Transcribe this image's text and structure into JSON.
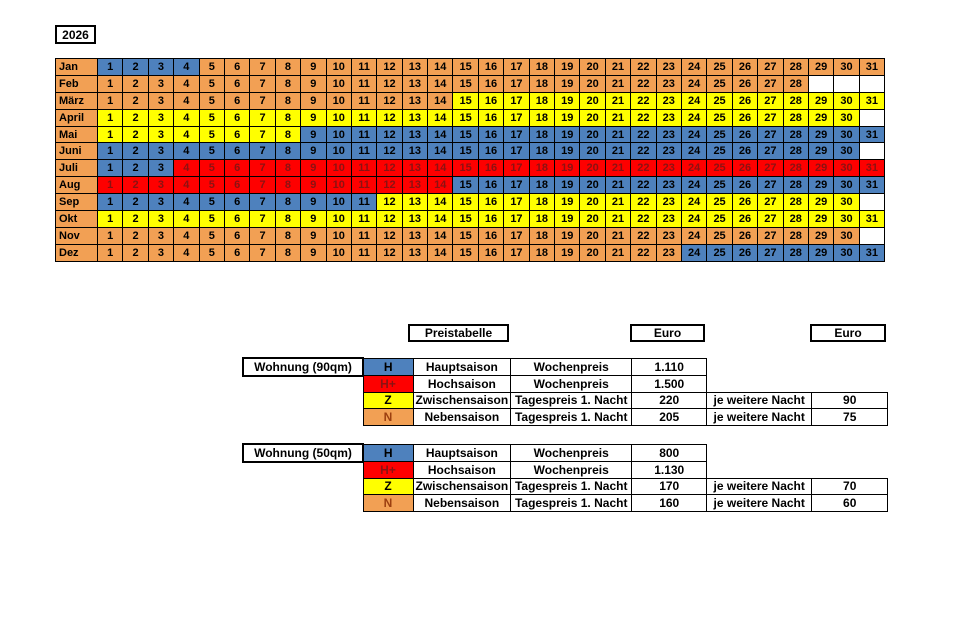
{
  "year_label": "2026",
  "season_colors": {
    "H": "#4E81BD",
    "H+": "#FE0000",
    "Z": "#FFFF00",
    "N": "#F2A054"
  },
  "season_text_colors": {
    "H": "#000000",
    "H+": "#8B1212",
    "Z": "#000000",
    "N": "#000000"
  },
  "legend_text_colors": {
    "H": "#000000",
    "H+": "#8B1212",
    "Z": "#000000",
    "N": "#9C3F10"
  },
  "calendar": {
    "months": [
      {
        "label": "Jan",
        "seasons": [
          {
            "from": 1,
            "to": 4,
            "code": "H"
          },
          {
            "from": 5,
            "to": 31,
            "code": "N"
          }
        ]
      },
      {
        "label": "Feb",
        "seasons": [
          {
            "from": 1,
            "to": 28,
            "code": "N"
          }
        ]
      },
      {
        "label": "März",
        "seasons": [
          {
            "from": 1,
            "to": 14,
            "code": "N"
          },
          {
            "from": 15,
            "to": 31,
            "code": "Z"
          }
        ]
      },
      {
        "label": "April",
        "seasons": [
          {
            "from": 1,
            "to": 30,
            "code": "Z"
          }
        ]
      },
      {
        "label": "Mai",
        "seasons": [
          {
            "from": 1,
            "to": 8,
            "code": "Z"
          },
          {
            "from": 9,
            "to": 31,
            "code": "H"
          }
        ]
      },
      {
        "label": "Juni",
        "seasons": [
          {
            "from": 1,
            "to": 30,
            "code": "H"
          }
        ]
      },
      {
        "label": "Juli",
        "seasons": [
          {
            "from": 1,
            "to": 3,
            "code": "H"
          },
          {
            "from": 4,
            "to": 31,
            "code": "H+"
          }
        ]
      },
      {
        "label": "Aug",
        "seasons": [
          {
            "from": 1,
            "to": 14,
            "code": "H+"
          },
          {
            "from": 15,
            "to": 31,
            "code": "H"
          }
        ]
      },
      {
        "label": "Sep",
        "seasons": [
          {
            "from": 1,
            "to": 11,
            "code": "H"
          },
          {
            "from": 12,
            "to": 30,
            "code": "Z"
          }
        ]
      },
      {
        "label": "Okt",
        "seasons": [
          {
            "from": 1,
            "to": 31,
            "code": "Z"
          }
        ]
      },
      {
        "label": "Nov",
        "seasons": [
          {
            "from": 1,
            "to": 30,
            "code": "N"
          }
        ]
      },
      {
        "label": "Dez",
        "seasons": [
          {
            "from": 1,
            "to": 23,
            "code": "N"
          },
          {
            "from": 24,
            "to": 31,
            "code": "H"
          }
        ]
      }
    ]
  },
  "pricing": {
    "header": {
      "title": "Preistabelle",
      "euro1": "Euro",
      "euro2": "Euro"
    },
    "tables": [
      {
        "name": "Wohnung (90qm)",
        "rows": [
          {
            "code": "H",
            "season": "Hauptsaison",
            "price_type": "Wochenpreis",
            "price": "1.110"
          },
          {
            "code": "H+",
            "season": "Hochsaison",
            "price_type": "Wochenpreis",
            "price": "1.500"
          },
          {
            "code": "Z",
            "season": "Zwischensaison",
            "price_type": "Tagespreis 1. Nacht",
            "price": "220",
            "extra_label": "je weitere Nacht",
            "extra_price": "90"
          },
          {
            "code": "N",
            "season": "Nebensaison",
            "price_type": "Tagespreis 1. Nacht",
            "price": "205",
            "extra_label": "je weitere Nacht",
            "extra_price": "75"
          }
        ]
      },
      {
        "name": "Wohnung (50qm)",
        "rows": [
          {
            "code": "H",
            "season": "Hauptsaison",
            "price_type": "Wochenpreis",
            "price": "800"
          },
          {
            "code": "H+",
            "season": "Hochsaison",
            "price_type": "Wochenpreis",
            "price": "1.130"
          },
          {
            "code": "Z",
            "season": "Zwischensaison",
            "price_type": "Tagespreis 1. Nacht",
            "price": "170",
            "extra_label": "je weitere Nacht",
            "extra_price": "70"
          },
          {
            "code": "N",
            "season": "Nebensaison",
            "price_type": "Tagespreis 1. Nacht",
            "price": "160",
            "extra_label": "je weitere Nacht",
            "extra_price": "60"
          }
        ]
      }
    ]
  }
}
